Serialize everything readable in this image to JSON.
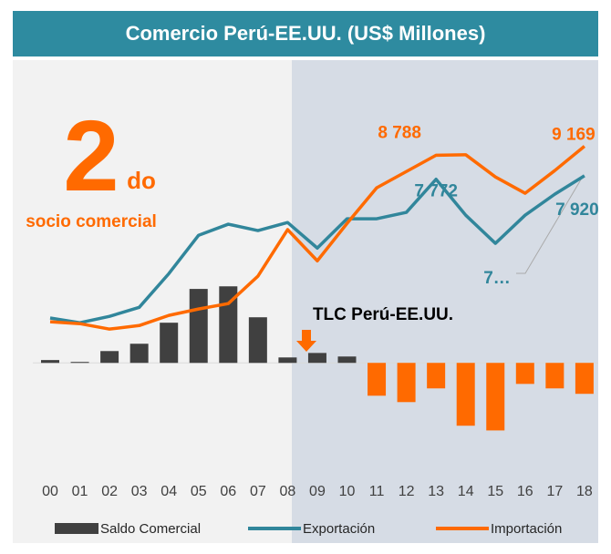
{
  "chart_data": {
    "type": "combo",
    "title": "Comercio Perú-EE.UU. (US$ Millones)",
    "annotations": [
      "2",
      "do",
      "socio comercial",
      "TLC Perú-EE.UU.",
      "7…"
    ],
    "categories": [
      "00",
      "01",
      "02",
      "03",
      "04",
      "05",
      "06",
      "07",
      "08",
      "09",
      "10",
      "11",
      "12",
      "13",
      "14",
      "15",
      "16",
      "17",
      "18"
    ],
    "ylim": [
      -3500,
      10500
    ],
    "series": [
      {
        "name": "Saldo Comercial",
        "kind": "bar",
        "color": "#404040",
        "negative_color": "#ff6a00",
        "values": [
          120,
          40,
          500,
          810,
          1700,
          3130,
          3240,
          1930,
          230,
          420,
          270,
          -1390,
          -1660,
          -1080,
          -2660,
          -2860,
          -890,
          -1080,
          -1310
        ]
      },
      {
        "name": "Exportación",
        "kind": "line",
        "color": "#31869b",
        "values": [
          1900,
          1700,
          1970,
          2350,
          3780,
          5400,
          5870,
          5600,
          5940,
          4860,
          6100,
          6100,
          6370,
          7772,
          6250,
          5060,
          6250,
          7140,
          7920
        ],
        "value_labels": [
          null,
          null,
          null,
          null,
          null,
          null,
          null,
          null,
          null,
          null,
          null,
          null,
          null,
          "7 772",
          null,
          null,
          null,
          null,
          "7 920"
        ]
      },
      {
        "name": "Importación",
        "kind": "line",
        "color": "#ff6a00",
        "values": [
          1740,
          1660,
          1430,
          1580,
          2010,
          2280,
          2510,
          3670,
          5640,
          4320,
          5900,
          7410,
          8100,
          8788,
          8810,
          7870,
          7180,
          8140,
          9169
        ],
        "value_labels": [
          null,
          null,
          null,
          null,
          null,
          null,
          null,
          null,
          null,
          null,
          null,
          null,
          null,
          "8 788",
          null,
          null,
          null,
          null,
          "9 169"
        ]
      }
    ]
  }
}
